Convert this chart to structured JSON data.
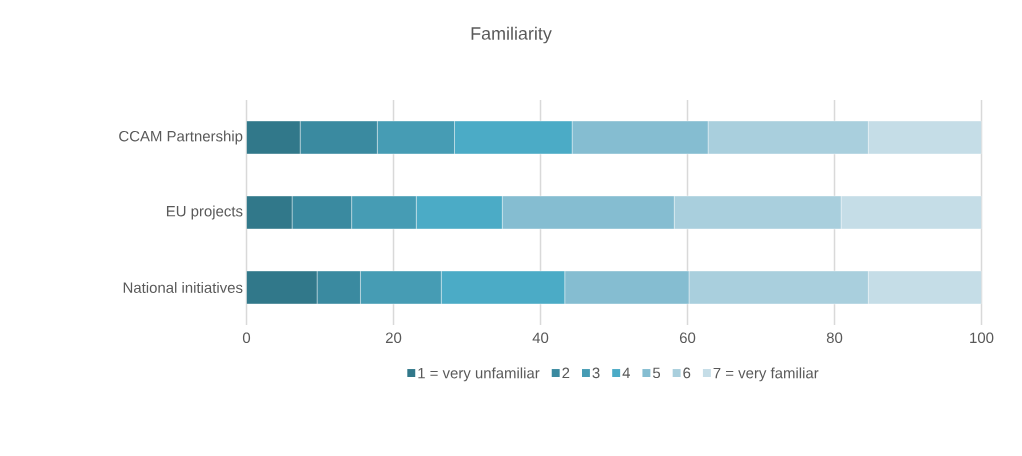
{
  "chart_data": {
    "type": "bar",
    "orientation": "horizontal",
    "stacked": true,
    "title": "Familiarity",
    "categories": [
      "CCAM Partnership",
      "EU projects",
      "National initiatives"
    ],
    "series": [
      {
        "name": "1 = very unfamiliar",
        "color": "#31788a",
        "values": [
          7.3,
          6.2,
          9.6
        ]
      },
      {
        "name": "2",
        "color": "#3a8aa0",
        "values": [
          10.5,
          8.1,
          5.9
        ]
      },
      {
        "name": "3",
        "color": "#469cb4",
        "values": [
          10.5,
          8.8,
          11.0
        ]
      },
      {
        "name": "4",
        "color": "#4babc6",
        "values": [
          16.0,
          11.7,
          16.8
        ]
      },
      {
        "name": "5",
        "color": "#85bdd1",
        "values": [
          18.5,
          23.4,
          16.9
        ]
      },
      {
        "name": "6",
        "color": "#a9cfdd",
        "values": [
          21.8,
          22.7,
          24.4
        ]
      },
      {
        "name": "7 = very familiar",
        "color": "#c5dde7",
        "values": [
          15.4,
          19.1,
          15.4
        ]
      }
    ],
    "xlim": [
      0,
      100
    ],
    "xticks": [
      0,
      20,
      40,
      60,
      80,
      100
    ],
    "grid": "x",
    "legend": "bottom"
  }
}
